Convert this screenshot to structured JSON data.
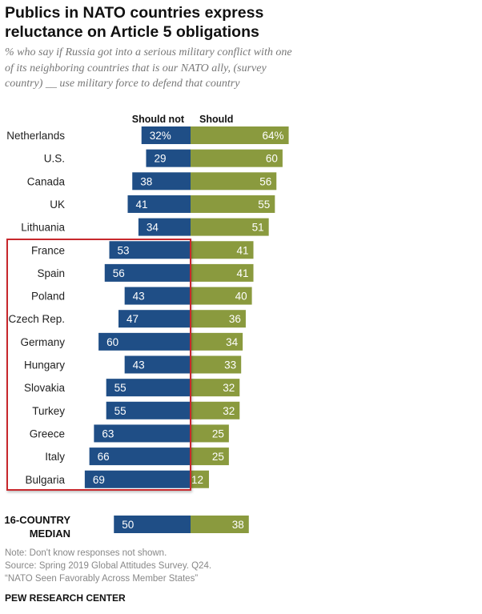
{
  "title": "Publics in NATO countries express reluctance on Article 5 obligations",
  "subtitle": "% who say if Russia got into a serious military conflict with one of its neighboring countries that is our NATO ally, (survey country) __ use military force to defend that country",
  "colors": {
    "should_not": "#1f4e86",
    "should": "#8a9a3e"
  },
  "chart_data": {
    "type": "bar",
    "orientation": "horizontal-diverging",
    "title": "Publics in NATO countries express reluctance on Article 5 obligations",
    "subtitle": "% who say if Russia got into a serious military conflict with one of its neighboring countries that is our NATO ally, (survey country) __ use military force to defend that country",
    "legend": [
      "Should not",
      "Should"
    ],
    "legend_placement": "top",
    "categories": [
      "Netherlands",
      "U.S.",
      "Canada",
      "UK",
      "Lithuania",
      "France",
      "Spain",
      "Poland",
      "Czech Rep.",
      "Germany",
      "Hungary",
      "Slovakia",
      "Turkey",
      "Greece",
      "Italy",
      "Bulgaria"
    ],
    "series": [
      {
        "name": "Should not",
        "values": [
          32,
          29,
          38,
          41,
          34,
          53,
          56,
          43,
          47,
          60,
          43,
          55,
          55,
          63,
          66,
          69
        ]
      },
      {
        "name": "Should",
        "values": [
          64,
          60,
          56,
          55,
          51,
          41,
          41,
          40,
          36,
          34,
          33,
          32,
          32,
          25,
          25,
          12
        ]
      }
    ],
    "first_row_suffix": "%",
    "highlighted_categories": [
      "France",
      "Spain",
      "Poland",
      "Czech Rep.",
      "Germany",
      "Hungary",
      "Slovakia",
      "Turkey",
      "Greece",
      "Italy",
      "Bulgaria"
    ],
    "median": {
      "label_line1": "16-COUNTRY",
      "label_line2": "MEDIAN",
      "should_not": 50,
      "should": 38
    },
    "xlabel": "",
    "ylabel": "",
    "grid": false
  },
  "footer": {
    "note": "Note: Don't know responses not shown.",
    "source": "Source: Spring 2019 Global Attitudes Survey. Q24.",
    "report": "“NATO Seen Favorably Across Member States”",
    "brand": "PEW RESEARCH CENTER"
  }
}
